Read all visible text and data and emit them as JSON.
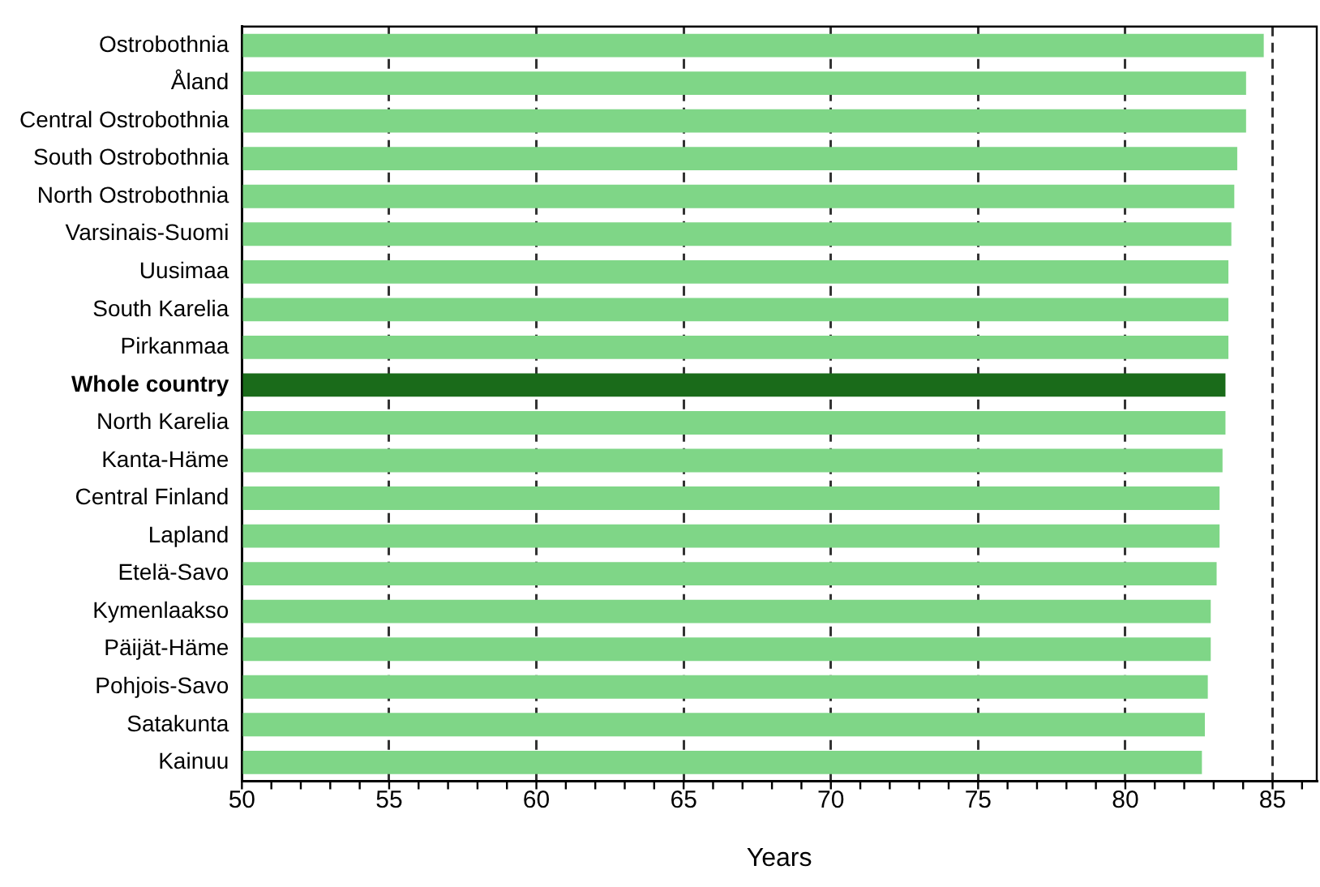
{
  "chart_data": {
    "type": "bar",
    "orientation": "horizontal",
    "xlabel": "Years",
    "categories": [
      "Ostrobothnia",
      "Åland",
      "Central Ostrobothnia",
      "South Ostrobothnia",
      "North Ostrobothnia",
      "Varsinais-Suomi",
      "Uusimaa",
      "South Karelia",
      "Pirkanmaa",
      "Whole country",
      "North Karelia",
      "Kanta-Häme",
      "Central Finland",
      "Lapland",
      "Etelä-Savo",
      "Kymenlaakso",
      "Päijät-Häme",
      "Pohjois-Savo",
      "Satakunta",
      "Kainuu"
    ],
    "values": [
      84.7,
      84.1,
      84.1,
      83.8,
      83.7,
      83.6,
      83.5,
      83.5,
      83.5,
      83.4,
      83.4,
      83.3,
      83.2,
      83.2,
      83.1,
      82.9,
      82.9,
      82.8,
      82.7,
      82.6
    ],
    "colors": [
      "#7fd687",
      "#7fd687",
      "#7fd687",
      "#7fd687",
      "#7fd687",
      "#7fd687",
      "#7fd687",
      "#7fd687",
      "#7fd687",
      "#1a6b1a",
      "#7fd687",
      "#7fd687",
      "#7fd687",
      "#7fd687",
      "#7fd687",
      "#7fd687",
      "#7fd687",
      "#7fd687",
      "#7fd687",
      "#7fd687"
    ],
    "xlim": [
      50,
      86.5
    ],
    "xticks": [
      50,
      {
        "value": 51,
        "label": null
      },
      {
        "value": 52,
        "label": null
      },
      {
        "value": 53,
        "label": null
      },
      {
        "value": 54,
        "label": null
      },
      55,
      {
        "value": 56,
        "label": null
      },
      {
        "value": 57,
        "label": null
      },
      {
        "value": 58,
        "label": null
      },
      {
        "value": 59,
        "label": null
      },
      60,
      {
        "value": 61,
        "label": null
      },
      {
        "value": 62,
        "label": null
      },
      {
        "value": 63,
        "label": null
      },
      {
        "value": 64,
        "label": null
      },
      65,
      {
        "value": 66,
        "label": null
      },
      {
        "value": 67,
        "label": null
      },
      {
        "value": 68,
        "label": null
      },
      {
        "value": 69,
        "label": null
      },
      70,
      {
        "value": 71,
        "label": null
      },
      {
        "value": 72,
        "label": null
      },
      {
        "value": 73,
        "label": null
      },
      {
        "value": 74,
        "label": null
      },
      75,
      {
        "value": 76,
        "label": null
      },
      {
        "value": 77,
        "label": null
      },
      {
        "value": 78,
        "label": null
      },
      {
        "value": 79,
        "label": null
      },
      80,
      {
        "value": 81,
        "label": null
      },
      {
        "value": 82,
        "label": null
      },
      {
        "value": 83,
        "label": null
      },
      {
        "value": 84,
        "label": null
      },
      85,
      {
        "value": 86,
        "label": null
      }
    ],
    "grid": "x"
  }
}
